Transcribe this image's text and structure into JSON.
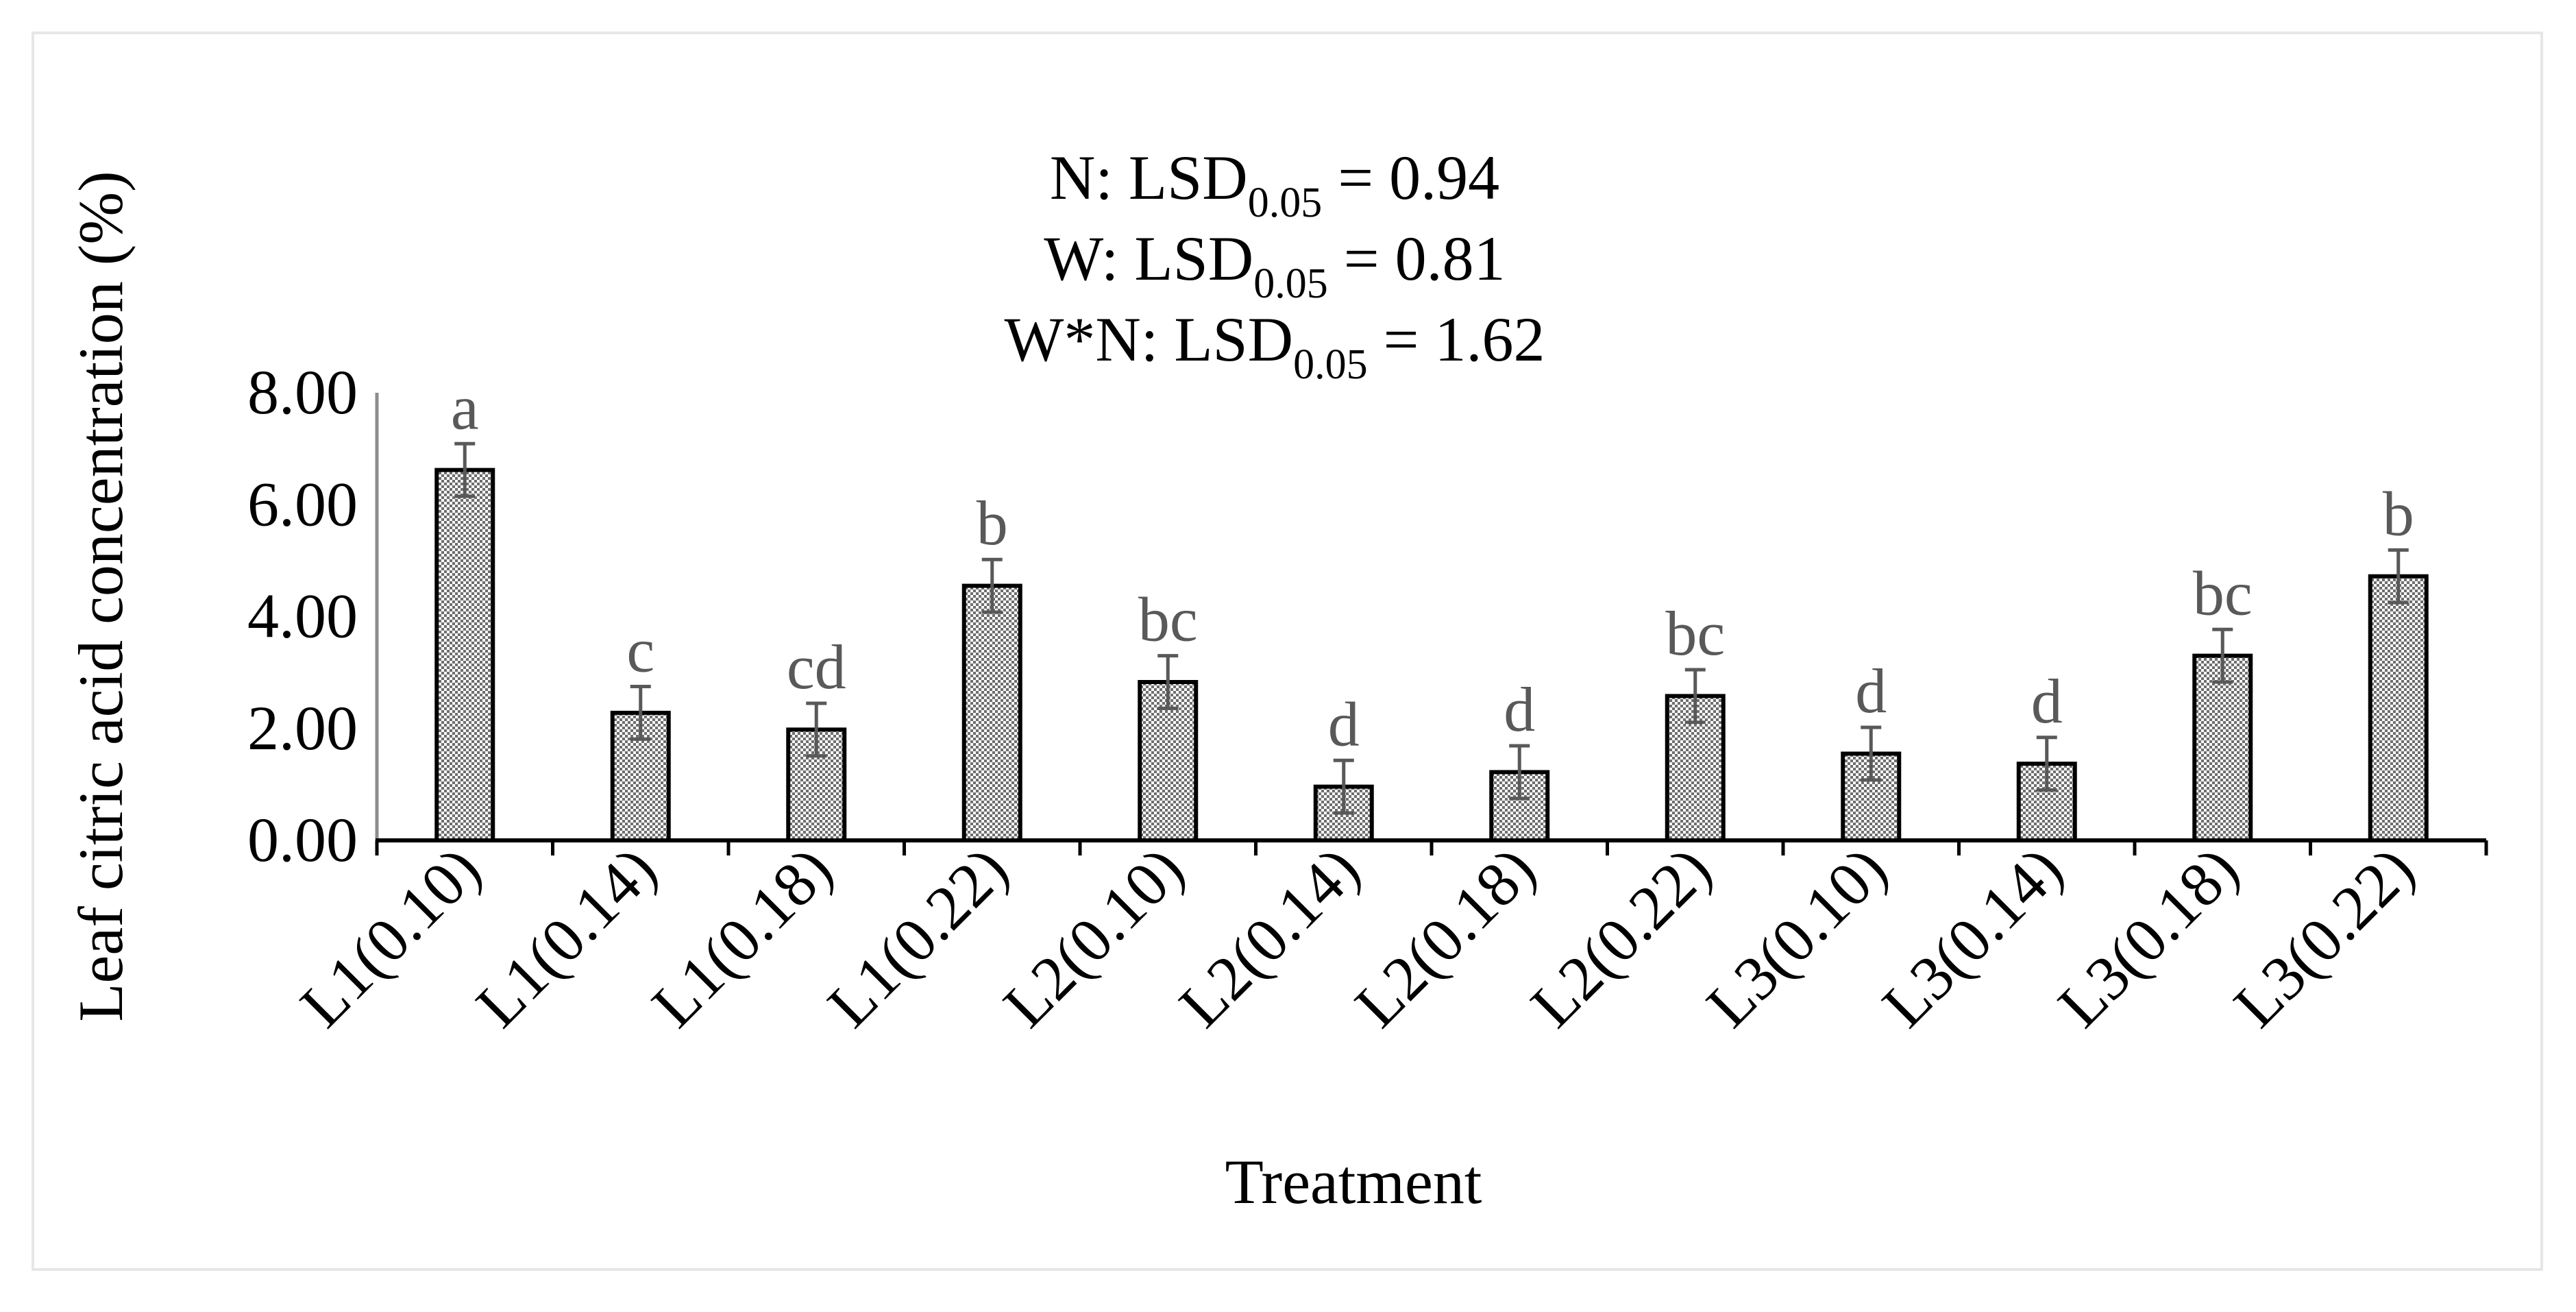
{
  "chart_data": {
    "type": "bar",
    "ylabel": "Leaf citric acid concentration (%)",
    "xlabel": "Treatment",
    "ylim": [
      0,
      8
    ],
    "yticks": [
      "0.00",
      "2.00",
      "4.00",
      "6.00",
      "8.00"
    ],
    "annotation": {
      "line1": {
        "prefix": "N: LSD",
        "sub": "0.05",
        "suffix": " = 0.94"
      },
      "line2": {
        "prefix": "W:  LSD",
        "sub": "0.05",
        "suffix": " = 0.81"
      },
      "line3": {
        "prefix": "W*N:  LSD",
        "sub": "0.05",
        "suffix": " = 1.62"
      }
    },
    "categories": [
      "L1(0.10)",
      "L1(0.14)",
      "L1(0.18)",
      "L1(0.22)",
      "L2(0.10)",
      "L2(0.14)",
      "L2(0.18)",
      "L2(0.22)",
      "L3(0.10)",
      "L3(0.14)",
      "L3(0.18)",
      "L3(0.22)"
    ],
    "values": [
      6.62,
      2.28,
      1.98,
      4.55,
      2.83,
      0.96,
      1.22,
      2.58,
      1.55,
      1.37,
      3.3,
      4.72
    ],
    "errors": [
      0.47,
      0.47,
      0.47,
      0.47,
      0.47,
      0.47,
      0.47,
      0.47,
      0.47,
      0.47,
      0.47,
      0.47
    ],
    "letters": [
      "a",
      "c",
      "cd",
      "b",
      "bc",
      "d",
      "d",
      "bc",
      "d",
      "d",
      "bc",
      "b"
    ],
    "colors": {
      "bar_fill": "#bfbfbf",
      "bar_stroke": "#000000",
      "error_bar": "#595959",
      "letter": "#595959"
    }
  }
}
